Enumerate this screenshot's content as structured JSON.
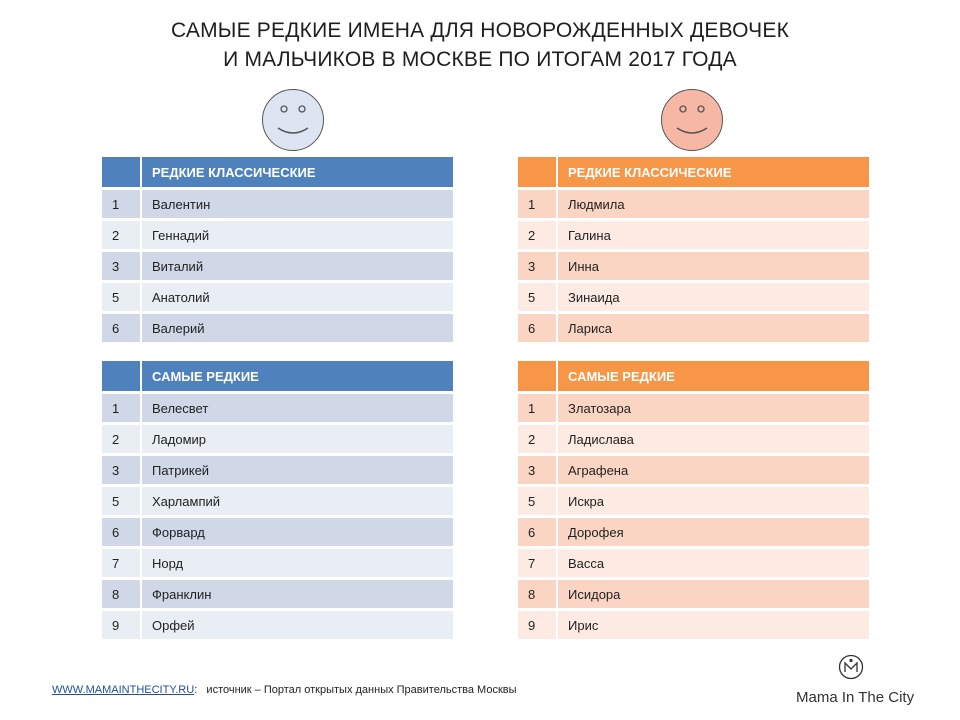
{
  "title": {
    "line1": "САМЫЕ РЕДКИЕ ИМЕНА ДЛЯ НОВОРОЖДЕННЫХ ДЕВОЧЕК",
    "line2": "И МАЛЬЧИКОВ В МОСКВЕ ПО ИТОГАМ 2017 ГОДА"
  },
  "colors": {
    "boys_header": "#4f81bd",
    "girls_header": "#f79646",
    "boy_face": "#dde5f3",
    "girl_face": "#f6b8a4"
  },
  "boys": {
    "classic": {
      "header": "РЕДКИЕ КЛАССИЧЕСКИЕ",
      "rows": [
        {
          "num": "1",
          "name": "Валентин"
        },
        {
          "num": "2",
          "name": "Геннадий"
        },
        {
          "num": "3",
          "name": "Виталий"
        },
        {
          "num": "5",
          "name": "Анатолий"
        },
        {
          "num": "6",
          "name": "Валерий"
        }
      ]
    },
    "rarest": {
      "header": "САМЫЕ РЕДКИЕ",
      "rows": [
        {
          "num": "1",
          "name": "Велесвет"
        },
        {
          "num": "2",
          "name": "Ладомир"
        },
        {
          "num": "3",
          "name": "Патрикей"
        },
        {
          "num": "5",
          "name": "Харлампий"
        },
        {
          "num": "6",
          "name": "Форвард"
        },
        {
          "num": "7",
          "name": "Норд"
        },
        {
          "num": "8",
          "name": "Франклин"
        },
        {
          "num": "9",
          "name": "Орфей"
        }
      ]
    }
  },
  "girls": {
    "classic": {
      "header": "РЕДКИЕ КЛАССИЧЕСКИЕ",
      "rows": [
        {
          "num": "1",
          "name": "Людмила"
        },
        {
          "num": "2",
          "name": "Галина"
        },
        {
          "num": "3",
          "name": "Инна"
        },
        {
          "num": "5",
          "name": "Зинаида"
        },
        {
          "num": "6",
          "name": "Лариса"
        }
      ]
    },
    "rarest": {
      "header": "САМЫЕ РЕДКИЕ",
      "rows": [
        {
          "num": "1",
          "name": "Златозара"
        },
        {
          "num": "2",
          "name": "Ладислава"
        },
        {
          "num": "3",
          "name": "Аграфена"
        },
        {
          "num": "5",
          "name": "Искра"
        },
        {
          "num": "6",
          "name": "Дорофея"
        },
        {
          "num": "7",
          "name": "Васса"
        },
        {
          "num": "8",
          "name": "Исидора"
        },
        {
          "num": "9",
          "name": "Ирис"
        }
      ]
    }
  },
  "footer": {
    "link_text": "WWW.MAMAINTHECITY.RU",
    "separator": ":",
    "source": "источник – Портал открытых данных Правительства Москвы"
  },
  "logo": {
    "icon": "mama-in-the-city-logo-icon",
    "text": "Mama In The City"
  }
}
